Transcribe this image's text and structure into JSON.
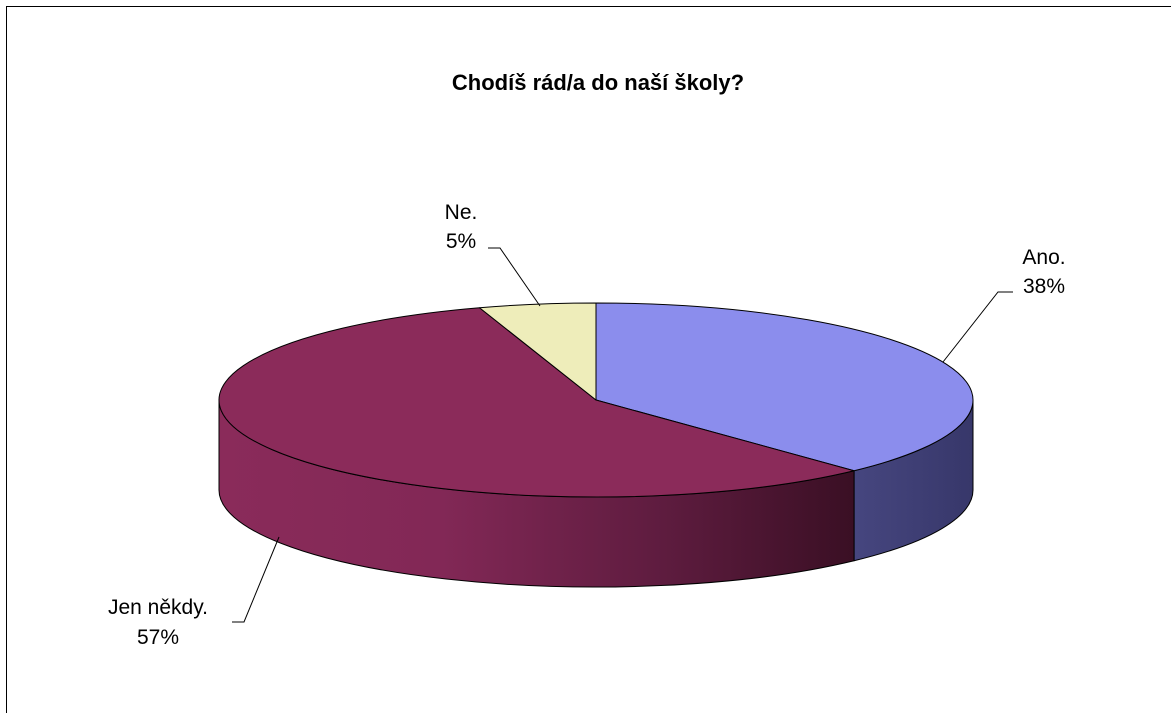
{
  "chart_data": {
    "type": "pie",
    "title": "Chodíš rád/a do naší školy?",
    "slices": [
      {
        "label": "Ano.",
        "value": 38,
        "value_label": "38%",
        "color": "#8B8DED"
      },
      {
        "label": "Jen někdy.",
        "value": 57,
        "value_label": "57%",
        "color": "#8B2B5A"
      },
      {
        "label": "Ne.",
        "value": 5,
        "value_label": "5%",
        "color": "#EEEDBA"
      }
    ],
    "style": "3d",
    "legend": "none",
    "data_labels": "outside with leader lines"
  }
}
